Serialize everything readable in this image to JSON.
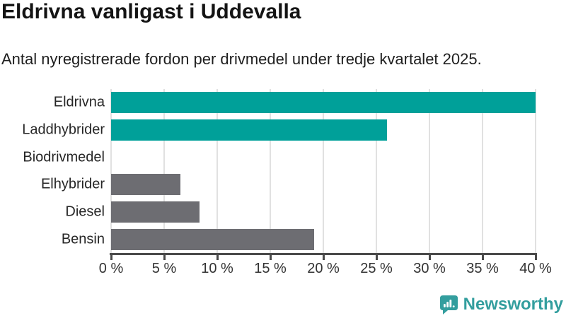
{
  "header": {
    "title": "Eldrivna vanligast i Uddevalla",
    "subtitle": "Antal nyregistrerade fordon per drivmedel under tredje kvartalet 2025."
  },
  "chart_data": {
    "type": "bar",
    "orientation": "horizontal",
    "title": "Eldrivna vanligast i Uddevalla",
    "subtitle": "Antal nyregistrerade fordon per drivmedel under tredje kvartalet 2025.",
    "categories": [
      "Eldrivna",
      "Laddhybrider",
      "Biodrivmedel",
      "Elhybrider",
      "Diesel",
      "Bensin"
    ],
    "values": [
      40,
      26,
      0,
      6.5,
      8.3,
      19.1
    ],
    "bar_colors": [
      "#00a099",
      "#00a099",
      "#6d6d72",
      "#6d6d72",
      "#6d6d72",
      "#6d6d72"
    ],
    "unit": "%",
    "xlabel": "",
    "ylabel": "",
    "xlim": [
      0,
      40
    ],
    "x_ticks": [
      0,
      5,
      10,
      15,
      20,
      25,
      30,
      35,
      40
    ],
    "x_tick_labels": [
      "0 %",
      "5 %",
      "10 %",
      "15 %",
      "20 %",
      "25 %",
      "30 %",
      "35 %",
      "40 %"
    ],
    "grid": "vertical-only",
    "legend": "none"
  },
  "footer": {
    "logo_text": "Newsworthy"
  },
  "colors": {
    "accent_teal": "#00a099",
    "neutral_gray": "#6d6d72",
    "gridline": "#e1e1e1",
    "axis": "#4a4a4a",
    "logo_teal": "#339e9e"
  }
}
